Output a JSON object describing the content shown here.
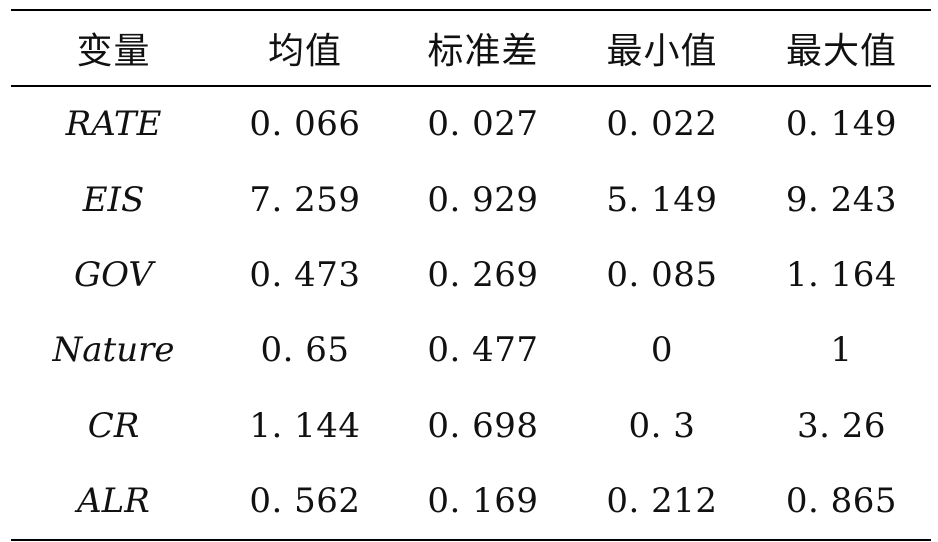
{
  "table": {
    "headers": [
      "变量",
      "均值",
      "标准差",
      "最小值",
      "最大值"
    ],
    "rows": [
      [
        "RATE",
        "0. 066",
        "0. 027",
        "0. 022",
        "0. 149"
      ],
      [
        "EIS",
        "7. 259",
        "0. 929",
        "5. 149",
        "9. 243"
      ],
      [
        "GOV",
        "0. 473",
        "0. 269",
        "0. 085",
        "1. 164"
      ],
      [
        "Nature",
        "0. 65",
        "0. 477",
        "0",
        "1"
      ],
      [
        "CR",
        "1. 144",
        "0. 698",
        "0. 3",
        "3. 26"
      ],
      [
        "ALR",
        "0. 562",
        "0. 169",
        "0. 212",
        "0. 865"
      ]
    ]
  }
}
